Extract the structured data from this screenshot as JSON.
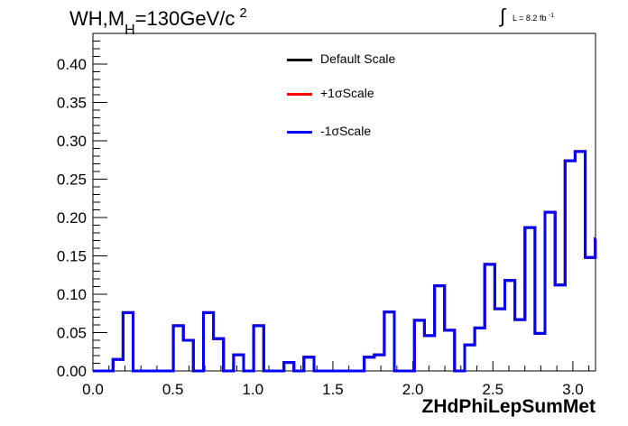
{
  "chart_data": {
    "type": "step",
    "title_parts": {
      "main": "WH,M",
      "sub": "H",
      "rest": "=130GeV/c",
      "sup": "2"
    },
    "lumi": {
      "text": "L = 8.2 fb",
      "sup": "-1"
    },
    "xlabel": "ZHdPhiLepSumMet",
    "ylabel": "",
    "xlim": [
      0,
      3.1416
    ],
    "ylim": [
      0,
      0.44
    ],
    "xticks": [
      "0.0",
      "0.5",
      "1.0",
      "1.5",
      "2.0",
      "2.5",
      "3.0"
    ],
    "yticks": [
      "0.00",
      "0.05",
      "0.10",
      "0.15",
      "0.20",
      "0.25",
      "0.30",
      "0.35",
      "0.40"
    ],
    "bin_width": 0.0628,
    "series": [
      {
        "name": "Default Scale",
        "color": "#000000",
        "values": [
          0,
          0,
          0.015,
          0.076,
          0,
          0,
          0,
          0,
          0.059,
          0.04,
          0,
          0.076,
          0.042,
          0,
          0.021,
          0,
          0.059,
          0,
          0,
          0.011,
          0,
          0.018,
          0,
          0,
          0,
          0,
          0,
          0.018,
          0.021,
          0.077,
          0,
          0,
          0.066,
          0.046,
          0.111,
          0.053,
          0,
          0.034,
          0.056,
          0.139,
          0.081,
          0.118,
          0.067,
          0.187,
          0.049,
          0.207,
          0.112,
          0.274,
          0.286,
          0.148,
          0.172
        ]
      },
      {
        "name": "+1σScale",
        "color": "#ff0000",
        "values": [
          0,
          0,
          0.015,
          0.076,
          0,
          0,
          0,
          0,
          0.059,
          0.04,
          0,
          0.076,
          0.042,
          0,
          0.021,
          0,
          0.059,
          0,
          0,
          0.011,
          0,
          0.018,
          0,
          0,
          0,
          0,
          0,
          0.018,
          0.021,
          0.077,
          0,
          0,
          0.066,
          0.046,
          0.111,
          0.053,
          0,
          0.034,
          0.056,
          0.139,
          0.081,
          0.118,
          0.067,
          0.187,
          0.049,
          0.207,
          0.112,
          0.274,
          0.286,
          0.148,
          0.172
        ]
      },
      {
        "name": "-1σScale",
        "color": "#0000ff",
        "values": [
          0,
          0,
          0.015,
          0.076,
          0,
          0,
          0,
          0,
          0.059,
          0.04,
          0,
          0.076,
          0.042,
          0,
          0.021,
          0,
          0.059,
          0,
          0,
          0.011,
          0,
          0.018,
          0,
          0,
          0,
          0,
          0,
          0.018,
          0.021,
          0.077,
          0,
          0,
          0.066,
          0.046,
          0.111,
          0.053,
          0,
          0.034,
          0.056,
          0.139,
          0.081,
          0.118,
          0.067,
          0.187,
          0.049,
          0.207,
          0.112,
          0.274,
          0.286,
          0.148,
          0.172
        ]
      }
    ],
    "legend_position": "top-center"
  }
}
